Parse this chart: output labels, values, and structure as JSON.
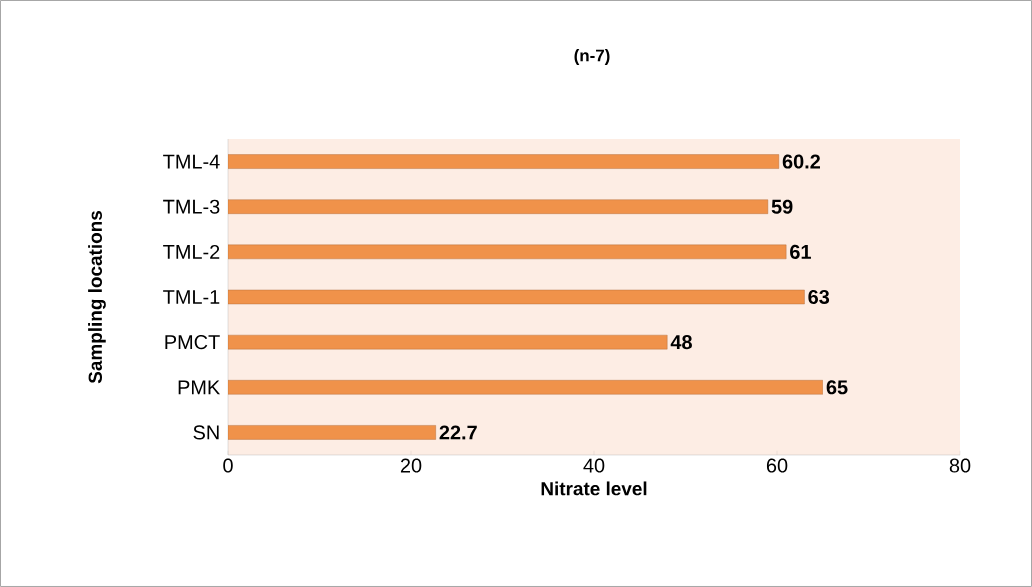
{
  "chart_data": {
    "type": "bar",
    "orientation": "horizontal",
    "title": "(n-7)",
    "xlabel": "Nitrate level",
    "ylabel": "Sampling locations",
    "categories": [
      "TML-4",
      "TML-3",
      "TML-2",
      "TML-1",
      "PMCT",
      "PMK",
      "SN"
    ],
    "values": [
      60.2,
      59,
      61,
      63,
      48,
      65,
      22.7
    ],
    "color": "#f0924a",
    "xlim": [
      0,
      80
    ],
    "xticks": [
      0,
      20,
      40,
      60,
      80
    ],
    "data_labels": true,
    "grid": false
  }
}
